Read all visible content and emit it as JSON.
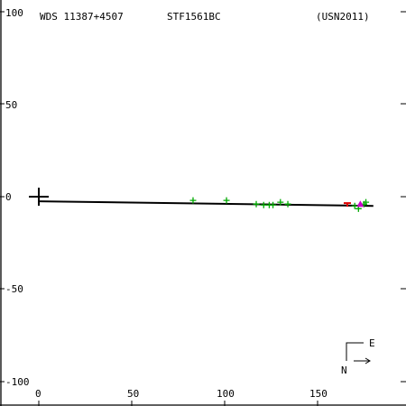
{
  "header": {
    "left": "WDS 11387+4507",
    "center": "STF1561BC",
    "right": "(USN2011)"
  },
  "compass": {
    "east": "E",
    "north": "N"
  },
  "chart_data": {
    "type": "scatter",
    "title": "",
    "xlabel": "",
    "ylabel": "",
    "xlim": [
      -20,
      195
    ],
    "ylim": [
      -110,
      104
    ],
    "x_ticks": [
      0,
      50,
      100,
      150
    ],
    "x_tick_labels": [
      "0",
      "50",
      "100",
      "150"
    ],
    "y_ticks": [
      100,
      50,
      0,
      -50,
      -100
    ],
    "y_tick_labels": [
      "100",
      "50",
      "0",
      "-50",
      "-100"
    ],
    "grid": false,
    "colors": {
      "axis": "#000000",
      "green": "#00aa00",
      "red": "#dd0000",
      "magenta": "#cc00cc"
    },
    "primary": {
      "x": 0,
      "y": 0
    },
    "orbit_line": {
      "x": [
        0,
        180
      ],
      "y": [
        -2.5,
        -5
      ]
    },
    "series": [
      {
        "marker": "plus",
        "color": "#00aa00",
        "points": [
          [
            83,
            -2
          ],
          [
            101,
            -2
          ],
          [
            117,
            -4
          ],
          [
            121,
            -4.5
          ],
          [
            124,
            -4.5
          ],
          [
            126,
            -4.5
          ],
          [
            130,
            -3
          ],
          [
            134,
            -4
          ],
          [
            170,
            -5
          ],
          [
            172,
            -6.5
          ],
          [
            175,
            -4
          ],
          [
            176,
            -3
          ]
        ]
      },
      {
        "marker": "dash",
        "color": "#dd0000",
        "points": [
          [
            166,
            -3.5
          ]
        ]
      },
      {
        "marker": "triangle",
        "color": "#cc00cc",
        "points": [
          [
            173,
            -4
          ]
        ]
      }
    ]
  }
}
